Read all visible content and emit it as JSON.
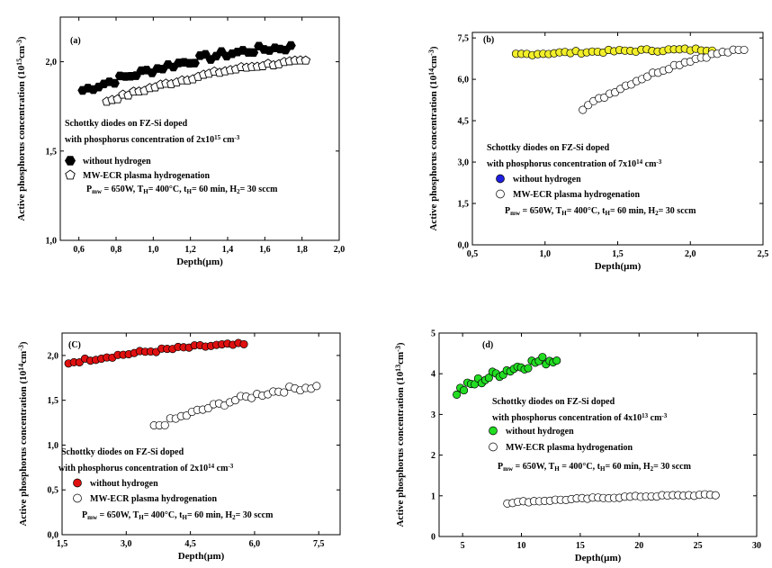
{
  "chart_data": [
    {
      "id": "a",
      "type": "scatter",
      "panel_label": "(a)",
      "xlabel": "Depth(µm)",
      "ylabel": "Active phosphorus concentration (10¹⁵cm⁻³)",
      "xlim": [
        0.5,
        2.0
      ],
      "ylim": [
        1.0,
        2.25
      ],
      "xticks": [
        0.6,
        0.8,
        1.0,
        1.2,
        1.4,
        1.6,
        1.8,
        2.0
      ],
      "xtick_labels": [
        "0,6",
        "0,8",
        "1,0",
        "1,2",
        "1,4",
        "1,6",
        "1,8",
        "2,0"
      ],
      "yticks": [
        1.0,
        1.5,
        2.0
      ],
      "ytick_labels": [
        "1,0",
        "1,5",
        "2,0"
      ],
      "annotations": [
        "Schottky diodes on FZ-Si doped",
        "with phosphorus concentration of 2x10¹⁵ cm⁻³",
        "Pmw = 650W, TH= 400°C, tH= 60 min, H2= 30 sccm"
      ],
      "series": [
        {
          "name": "without hydrogen",
          "marker": "hexagon",
          "fill": "#000000",
          "x_range": [
            0.62,
            1.74
          ],
          "y_start": 1.84,
          "y_end": 2.08,
          "noise": 0.02
        },
        {
          "name": "MW-ECR plasma hydrogenation",
          "marker": "pentagon",
          "fill": "#ffffff",
          "x_range": [
            0.75,
            1.82
          ],
          "y_start": 1.78,
          "y_end": 2.0,
          "noise": 0.01
        }
      ]
    },
    {
      "id": "b",
      "type": "scatter",
      "panel_label": "(b)",
      "xlabel": "Depth(µm)",
      "ylabel": "Active phosphorus concentration (10¹⁴cm⁻³)",
      "xlim": [
        0.5,
        2.5
      ],
      "ylim": [
        0.0,
        7.7
      ],
      "xticks": [
        0.5,
        1.0,
        1.5,
        2.0,
        2.5
      ],
      "xtick_labels": [
        "0,5",
        "1,0",
        "1,5",
        "2,0",
        "2,5"
      ],
      "yticks": [
        0.0,
        1.5,
        3.0,
        4.5,
        6.0,
        7.5
      ],
      "ytick_labels": [
        "0,0",
        "1,5",
        "3,0",
        "4,5",
        "6,0",
        "7,5"
      ],
      "annotations": [
        "Schottky diodes on FZ-Si doped",
        "with phosphorus concentration of 7x10¹⁴ cm⁻³",
        "Pmw = 650W, TH= 400°C, tH= 60 min, H2= 30 sccm"
      ],
      "series": [
        {
          "name": "without hydrogen",
          "marker": "circle",
          "fill": "#1f1fe0",
          "legend_fill": "#1f1fe0",
          "x_range": [
            0.8,
            2.15
          ],
          "y_start": 6.9,
          "y_end": 7.08,
          "noise": 0.05,
          "point_fill": "#f2ef2a"
        },
        {
          "name": "MW-ECR plasma hydrogenation",
          "marker": "circle",
          "fill": "#ffffff",
          "x_range": [
            1.26,
            2.37
          ],
          "y_start": 4.95,
          "y_end": 7.05,
          "noise": 0.06
        }
      ]
    },
    {
      "id": "c",
      "type": "scatter",
      "panel_label": "(C)",
      "xlabel": "Depth(µm)",
      "ylabel": "Active phosphorus concentration (10¹⁴cm⁻³)",
      "xlim": [
        1.5,
        8.0
      ],
      "ylim": [
        0.0,
        2.25
      ],
      "xticks": [
        1.5,
        3.0,
        4.5,
        6.0,
        7.5
      ],
      "xtick_labels": [
        "1,5",
        "3,0",
        "4,5",
        "6,0",
        "7,5"
      ],
      "yticks": [
        0.0,
        0.5,
        1.0,
        1.5,
        2.0
      ],
      "ytick_labels": [
        "0,0",
        "0,5",
        "1,0",
        "1,5",
        "2,0"
      ],
      "annotations": [
        "Schottky diodes on FZ-Si doped",
        "with phosphorus concentration of 2x10¹⁴ cm⁻³",
        "Pmw = 650W, TH= 400°C, tH= 60 min, H2= 30 sccm"
      ],
      "series": [
        {
          "name": "without hydrogen",
          "marker": "circle",
          "fill": "#e01010",
          "x_range": [
            1.65,
            5.75
          ],
          "y_start": 1.92,
          "y_end": 2.12,
          "noise": 0.02
        },
        {
          "name": "MW-ECR plasma hydrogenation",
          "marker": "circle",
          "fill": "#ffffff",
          "x_range": [
            3.65,
            7.45
          ],
          "y_start": 1.2,
          "y_end": 1.65,
          "noise": 0.03
        }
      ]
    },
    {
      "id": "d",
      "type": "scatter",
      "panel_label": "(d)",
      "xlabel": "Depth(µm)",
      "ylabel": "Active phosphorus concentration (10¹³cm⁻³)",
      "xlim": [
        3,
        30
      ],
      "ylim": [
        0,
        5
      ],
      "xticks": [
        5,
        10,
        15,
        20,
        25,
        30
      ],
      "xtick_labels": [
        "5",
        "10",
        "15",
        "20",
        "25",
        "30"
      ],
      "yticks": [
        0,
        1,
        2,
        3,
        4,
        5
      ],
      "ytick_labels": [
        "0",
        "1",
        "2",
        "3",
        "4",
        "5"
      ],
      "annotations": [
        "Schottky diodes on FZ-Si doped",
        "with phosphorus concentration of 4x10¹³ cm⁻³",
        "Pmw = 650W, TH = 400°C, tH= 60 min, H2= 30 sccm"
      ],
      "series": [
        {
          "name": "without hydrogen",
          "marker": "circle",
          "fill": "#22dd22",
          "x_range": [
            4.5,
            13.0
          ],
          "y_start": 3.55,
          "y_end": 4.35,
          "noise": 0.12
        },
        {
          "name": "MW-ECR plasma hydrogenation",
          "marker": "circle",
          "fill": "#ffffff",
          "x_range": [
            8.8,
            26.5
          ],
          "y_start": 0.83,
          "y_end": 1.02,
          "noise": 0.02
        }
      ]
    }
  ]
}
